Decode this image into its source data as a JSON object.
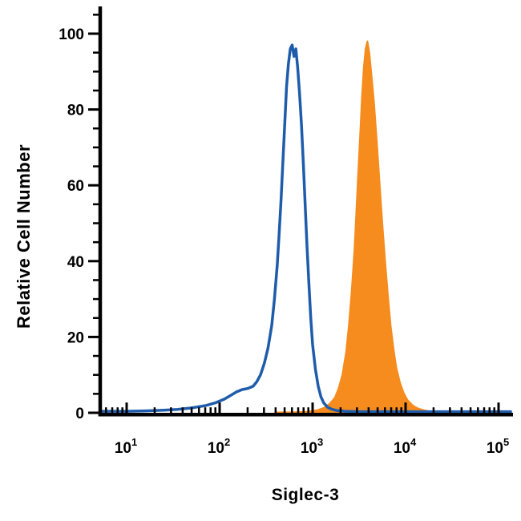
{
  "chart_data": {
    "type": "area",
    "title": "",
    "xlabel": "Siglec-3",
    "ylabel": "Relative Cell Number",
    "x_scale": "log10",
    "background": "#ffffff",
    "axis_color": "#000000",
    "x_axis": {
      "min_log10": 0.72,
      "max_log10": 5.13,
      "major_tick_exponents": [
        1,
        2,
        3,
        4,
        5
      ],
      "tick_label_base": "10"
    },
    "y_axis": {
      "min": 0,
      "max": 100,
      "major_ticks": [
        0,
        20,
        40,
        60,
        80,
        100
      ],
      "minor_tick_step": 5
    },
    "grid": false,
    "legend": "none",
    "series": [
      {
        "name": "open-blue-histogram",
        "style": "open",
        "color": "#1e5cab",
        "line_width": 3.5,
        "points_log10x_y": [
          [
            0.72,
            0.4
          ],
          [
            1.0,
            0.4
          ],
          [
            1.2,
            0.5
          ],
          [
            1.4,
            0.7
          ],
          [
            1.55,
            0.9
          ],
          [
            1.7,
            1.3
          ],
          [
            1.85,
            1.9
          ],
          [
            1.95,
            2.6
          ],
          [
            2.05,
            3.6
          ],
          [
            2.12,
            4.6
          ],
          [
            2.18,
            5.5
          ],
          [
            2.24,
            6.1
          ],
          [
            2.3,
            6.4
          ],
          [
            2.36,
            7.0
          ],
          [
            2.4,
            8.2
          ],
          [
            2.44,
            10
          ],
          [
            2.48,
            13
          ],
          [
            2.52,
            17
          ],
          [
            2.56,
            23
          ],
          [
            2.59,
            30
          ],
          [
            2.62,
            39
          ],
          [
            2.64,
            47
          ],
          [
            2.66,
            56
          ],
          [
            2.68,
            66
          ],
          [
            2.7,
            76
          ],
          [
            2.72,
            86
          ],
          [
            2.74,
            92
          ],
          [
            2.76,
            96
          ],
          [
            2.78,
            97
          ],
          [
            2.8,
            94
          ],
          [
            2.82,
            96
          ],
          [
            2.84,
            91
          ],
          [
            2.86,
            84
          ],
          [
            2.88,
            76
          ],
          [
            2.9,
            66
          ],
          [
            2.92,
            55
          ],
          [
            2.94,
            44
          ],
          [
            2.96,
            34
          ],
          [
            2.98,
            25
          ],
          [
            3.0,
            18
          ],
          [
            3.03,
            11.5
          ],
          [
            3.06,
            7
          ],
          [
            3.09,
            4.2
          ],
          [
            3.12,
            2.6
          ],
          [
            3.16,
            1.5
          ],
          [
            3.2,
            1.0
          ],
          [
            3.26,
            0.6
          ],
          [
            3.35,
            0.4
          ],
          [
            3.5,
            0.3
          ],
          [
            3.8,
            0.3
          ],
          [
            4.2,
            0.3
          ],
          [
            4.7,
            0.3
          ],
          [
            5.13,
            0.3
          ]
        ]
      },
      {
        "name": "filled-orange-histogram",
        "style": "filled",
        "color": "#f68b1e",
        "line_width": 2,
        "points_log10x_y": [
          [
            2.6,
            0.1
          ],
          [
            2.8,
            0.15
          ],
          [
            2.95,
            0.3
          ],
          [
            3.05,
            0.7
          ],
          [
            3.12,
            1.3
          ],
          [
            3.18,
            2.3
          ],
          [
            3.24,
            4
          ],
          [
            3.28,
            6.5
          ],
          [
            3.32,
            10
          ],
          [
            3.36,
            16
          ],
          [
            3.39,
            23
          ],
          [
            3.42,
            32
          ],
          [
            3.45,
            43
          ],
          [
            3.47,
            53
          ],
          [
            3.49,
            63
          ],
          [
            3.51,
            73
          ],
          [
            3.53,
            83
          ],
          [
            3.55,
            91
          ],
          [
            3.57,
            96
          ],
          [
            3.59,
            98
          ],
          [
            3.61,
            95
          ],
          [
            3.63,
            90
          ],
          [
            3.66,
            82
          ],
          [
            3.69,
            72
          ],
          [
            3.72,
            61
          ],
          [
            3.75,
            50
          ],
          [
            3.78,
            40
          ],
          [
            3.81,
            31
          ],
          [
            3.84,
            23
          ],
          [
            3.87,
            17
          ],
          [
            3.9,
            12
          ],
          [
            3.94,
            8
          ],
          [
            3.98,
            5.2
          ],
          [
            4.02,
            3.4
          ],
          [
            4.07,
            2.1
          ],
          [
            4.12,
            1.3
          ],
          [
            4.18,
            0.8
          ],
          [
            4.25,
            0.4
          ],
          [
            4.35,
            0.2
          ],
          [
            4.5,
            0.1
          ]
        ]
      }
    ]
  }
}
